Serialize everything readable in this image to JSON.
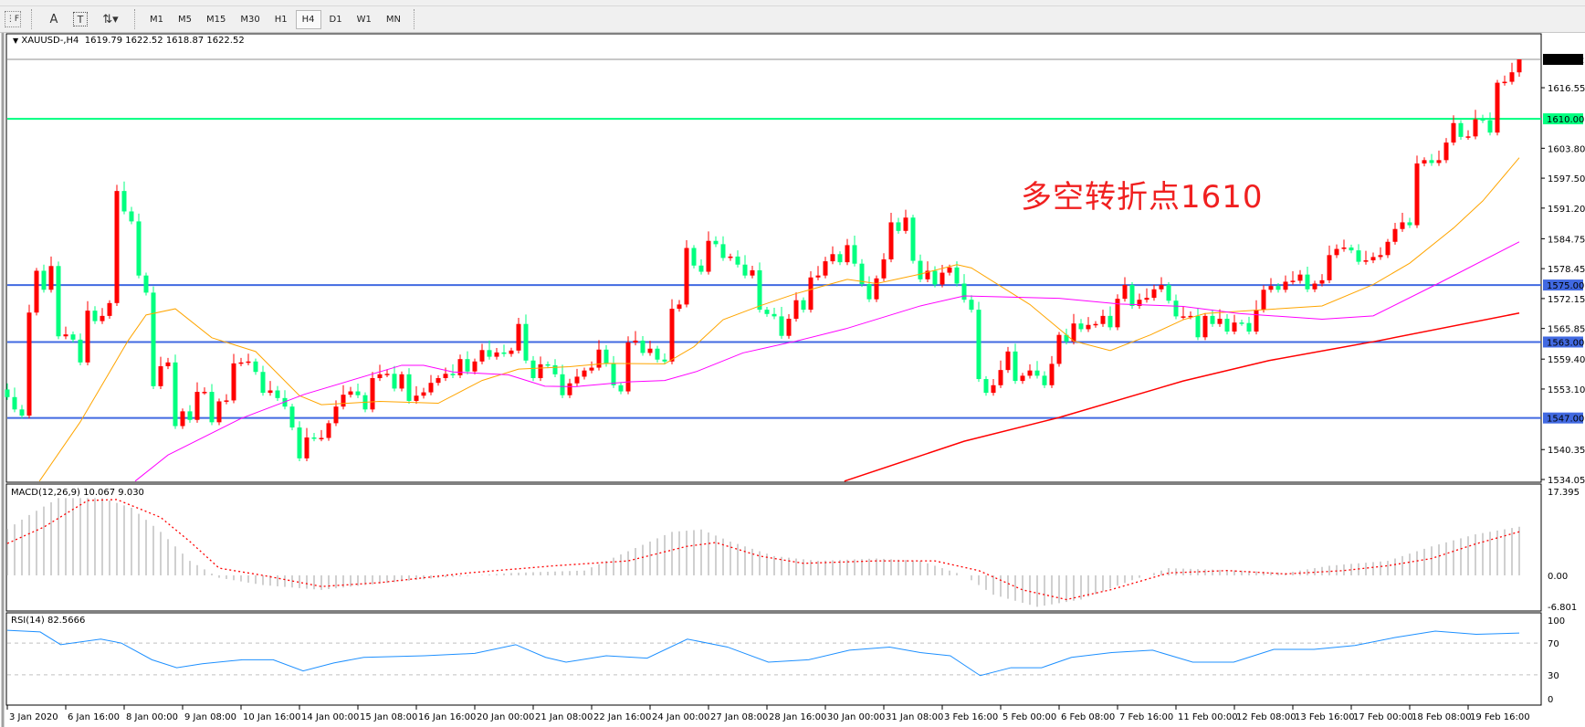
{
  "toolbar": {
    "tools": [
      {
        "name": "fibonacci-fan",
        "glyph": "⋮F"
      },
      {
        "name": "text",
        "glyph": "A"
      },
      {
        "name": "text-label",
        "glyph": "T"
      },
      {
        "name": "arrows",
        "glyph": "⇅▾"
      }
    ],
    "timeframes": [
      "M1",
      "M5",
      "M15",
      "M30",
      "H1",
      "H4",
      "D1",
      "W1",
      "MN"
    ],
    "active_timeframe": "H4"
  },
  "chart": {
    "symbol_info": "XAUUSD-,H4",
    "ohlc_info": "1619.79 1622.52 1618.87 1622.52",
    "annotation": "多空转折点1610",
    "colors": {
      "bull": "#ff0000",
      "bear": "#00ff7f",
      "ma_fast": "#ffa500",
      "ma_mid": "#ff00ff",
      "ma_slow": "#ff0000",
      "level_blue": "#4169e1",
      "level_green": "#00ff7f",
      "rsi": "#1e90ff",
      "macd_hist": "#c0c0c0",
      "macd_signal": "#ff0000"
    },
    "price_ticks": [
      "1616.55",
      "1603.80",
      "1597.50",
      "1591.20",
      "1584.75",
      "1578.45",
      "1572.15",
      "1565.85",
      "1559.40",
      "1553.10",
      "1540.35",
      "1534.05"
    ],
    "current_price": "1622.52",
    "levels": [
      {
        "price": 1610.0,
        "label": "1610.00",
        "color": "#00ff7f"
      },
      {
        "price": 1575.0,
        "label": "1575.00",
        "color": "#4169e1"
      },
      {
        "price": 1563.0,
        "label": "1563.00",
        "color": "#4169e1"
      },
      {
        "price": 1547.0,
        "label": "1547.00",
        "color": "#4169e1"
      }
    ],
    "x_labels": [
      "3 Jan 2020",
      "6 Jan 16:00",
      "8 Jan 00:00",
      "9 Jan 08:00",
      "10 Jan 16:00",
      "14 Jan 00:00",
      "15 Jan 08:00",
      "16 Jan 16:00",
      "20 Jan 00:00",
      "21 Jan 08:00",
      "22 Jan 16:00",
      "24 Jan 00:00",
      "27 Jan 08:00",
      "28 Jan 16:00",
      "30 Jan 00:00",
      "31 Jan 08:00",
      "3 Feb 16:00",
      "5 Feb 00:00",
      "6 Feb 08:00",
      "7 Feb 16:00",
      "11 Feb 00:00",
      "12 Feb 08:00",
      "13 Feb 16:00",
      "17 Feb 00:00",
      "18 Feb 08:00",
      "19 Feb 16:00"
    ]
  },
  "macd": {
    "label": "MACD(12,26,9) 10.067 9.030",
    "ticks": [
      "17.395",
      "0.00",
      "-6.801"
    ]
  },
  "rsi": {
    "label": "RSI(14) 82.5666",
    "ticks": [
      "100",
      "70",
      "30",
      "0"
    ]
  },
  "chart_data": {
    "type": "candlestick",
    "price_range": [
      1534.05,
      1622.52
    ],
    "first_open": 1553.0,
    "last_bar": {
      "open": 1619.79,
      "high": 1622.52,
      "low": 1618.87,
      "close": 1622.52
    },
    "closes": [
      1551.4,
      1548.8,
      1547.5,
      1569.2,
      1578.0,
      1574.0,
      1579.0,
      1564.2,
      1564.6,
      1563.5,
      1558.7,
      1569.6,
      1567.4,
      1568.5,
      1571.2,
      1594.8,
      1590.5,
      1588.4,
      1577.0,
      1573.4,
      1553.7,
      1557.9,
      1558.7,
      1545.3,
      1548.4,
      1546.6,
      1552.5,
      1552.5,
      1546.1,
      1550.5,
      1550.7,
      1558.5,
      1558.7,
      1558.9,
      1556.7,
      1552.3,
      1552.8,
      1551.2,
      1549.4,
      1545.0,
      1538.5,
      1542.9,
      1542.7,
      1542.8,
      1545.9,
      1549.4,
      1551.9,
      1552.6,
      1551.8,
      1548.8,
      1555.4,
      1556.2,
      1556.3,
      1553.2,
      1556.2,
      1550.6,
      1551.7,
      1552.4,
      1554.4,
      1555.4,
      1556.3,
      1556.0,
      1559.4,
      1556.8,
      1558.9,
      1561.3,
      1559.9,
      1560.8,
      1560.5,
      1561.2,
      1566.8,
      1559.1,
      1555.4,
      1558.3,
      1558.1,
      1556.2,
      1551.8,
      1554.3,
      1555.7,
      1557.0,
      1557.6,
      1561.4,
      1558.4,
      1553.9,
      1552.6,
      1562.9,
      1563.3,
      1560.7,
      1561.6,
      1559.3,
      1558.9,
      1570.0,
      1570.9,
      1582.8,
      1579.1,
      1577.8,
      1584.3,
      1583.6,
      1580.7,
      1581.0,
      1579.3,
      1577.0,
      1578.1,
      1569.8,
      1568.9,
      1568.4,
      1564.3,
      1567.9,
      1571.8,
      1569.8,
      1576.6,
      1577.0,
      1580.0,
      1581.5,
      1579.8,
      1583.4,
      1579.5,
      1575.2,
      1572.0,
      1576.4,
      1580.4,
      1588.2,
      1586.4,
      1589.2,
      1580.1,
      1576.2,
      1578.0,
      1575.1,
      1577.6,
      1578.7,
      1575.3,
      1571.9,
      1569.8,
      1555.2,
      1552.3,
      1553.9,
      1557.1,
      1561.0,
      1554.8,
      1555.9,
      1557.0,
      1555.9,
      1553.9,
      1558.4,
      1564.5,
      1563.1,
      1566.9,
      1565.7,
      1566.6,
      1566.8,
      1568.5,
      1566.1,
      1572.1,
      1575.0,
      1570.6,
      1571.9,
      1572.3,
      1574.1,
      1575.0,
      1571.7,
      1568.4,
      1568.4,
      1568.5,
      1564.0,
      1568.5,
      1566.8,
      1567.9,
      1565.2,
      1567.1,
      1567.0,
      1565.2,
      1569.8,
      1574.0,
      1574.8,
      1574.0,
      1575.7,
      1575.9,
      1577.2,
      1574.1,
      1575.3,
      1576.0,
      1581.3,
      1582.6,
      1582.9,
      1582.3,
      1579.9,
      1580.2,
      1580.9,
      1581.3,
      1584.1,
      1586.8,
      1588.2,
      1587.6,
      1600.6,
      1601.3,
      1600.7,
      1601.3,
      1605.0,
      1609.1,
      1606.2,
      1606.3,
      1609.9,
      1609.7,
      1607.1,
      1617.6,
      1617.8,
      1619.8,
      1622.52
    ],
    "ma_fast": [
      [
        5.4,
        1533.7
      ],
      [
        11,
        1546.2
      ],
      [
        17.5,
        1563.2
      ],
      [
        20,
        1568.7
      ],
      [
        24,
        1570.0
      ],
      [
        29,
        1563.9
      ],
      [
        35,
        1561.0
      ],
      [
        41,
        1551.7
      ],
      [
        44,
        1549.8
      ],
      [
        52,
        1550.5
      ],
      [
        60,
        1550.1
      ],
      [
        66,
        1554.9
      ],
      [
        71,
        1557.3
      ],
      [
        78,
        1557.8
      ],
      [
        83,
        1558.5
      ],
      [
        91,
        1558.4
      ],
      [
        95,
        1562.0
      ],
      [
        99,
        1567.7
      ],
      [
        104,
        1570.6
      ],
      [
        109,
        1573.2
      ],
      [
        116,
        1576.2
      ],
      [
        120,
        1575.3
      ],
      [
        126,
        1577.3
      ],
      [
        131,
        1579.3
      ],
      [
        133,
        1578.6
      ],
      [
        141,
        1570.9
      ],
      [
        147,
        1563.2
      ],
      [
        152,
        1561.2
      ],
      [
        157.5,
        1564.5
      ],
      [
        162,
        1567.7
      ],
      [
        165,
        1569.0
      ],
      [
        172,
        1569.7
      ],
      [
        181,
        1570.6
      ],
      [
        188,
        1575.1
      ],
      [
        193,
        1579.6
      ],
      [
        199,
        1587.0
      ],
      [
        203,
        1592.7
      ],
      [
        208,
        1601.8
      ]
    ],
    "ma_mid": [
      [
        18.5,
        1533.7
      ],
      [
        23,
        1539.2
      ],
      [
        33,
        1546.9
      ],
      [
        41.7,
        1552.0
      ],
      [
        55,
        1558.1
      ],
      [
        58,
        1558.1
      ],
      [
        62,
        1556.7
      ],
      [
        69.6,
        1556.1
      ],
      [
        74.6,
        1553.7
      ],
      [
        78.8,
        1553.6
      ],
      [
        86,
        1554.6
      ],
      [
        91,
        1554.9
      ],
      [
        95.4,
        1556.8
      ],
      [
        101.7,
        1560.7
      ],
      [
        109,
        1563.2
      ],
      [
        115.8,
        1565.8
      ],
      [
        126,
        1570.6
      ],
      [
        132,
        1572.7
      ],
      [
        145,
        1572.2
      ],
      [
        153.3,
        1571.0
      ],
      [
        162,
        1570.5
      ],
      [
        169.6,
        1569.0
      ],
      [
        181,
        1567.8
      ],
      [
        188,
        1568.5
      ],
      [
        197,
        1575.4
      ],
      [
        208,
        1584.1
      ]
    ],
    "ma_slow": [
      [
        115.6,
        1533.7
      ],
      [
        132,
        1542.1
      ],
      [
        145,
        1547.1
      ],
      [
        162,
        1554.8
      ],
      [
        173.75,
        1559.1
      ],
      [
        188.5,
        1563.2
      ],
      [
        208,
        1569.1
      ]
    ],
    "macd_main": [
      [
        1,
        9.6
      ],
      [
        4,
        12.5
      ],
      [
        8,
        16
      ],
      [
        14,
        16
      ],
      [
        18,
        14
      ],
      [
        22,
        9
      ],
      [
        26,
        3
      ],
      [
        30,
        -0.5
      ],
      [
        36,
        -2
      ],
      [
        44,
        -3
      ],
      [
        50,
        -2
      ],
      [
        60,
        -0.5
      ],
      [
        70,
        0.5
      ],
      [
        80,
        1
      ],
      [
        86,
        5
      ],
      [
        92,
        9
      ],
      [
        96,
        9.5
      ],
      [
        100,
        7
      ],
      [
        106,
        4
      ],
      [
        112,
        3
      ],
      [
        120,
        3.5
      ],
      [
        126,
        3
      ],
      [
        132,
        0
      ],
      [
        136,
        -4
      ],
      [
        142,
        -6.5
      ],
      [
        148,
        -5
      ],
      [
        155,
        -1
      ],
      [
        160,
        1.5
      ],
      [
        170,
        1
      ],
      [
        176,
        0.5
      ],
      [
        182,
        2
      ],
      [
        190,
        3
      ],
      [
        196,
        6
      ],
      [
        202,
        8.5
      ],
      [
        208,
        10.067
      ]
    ],
    "macd_signal": [
      [
        1,
        6.6
      ],
      [
        6,
        10
      ],
      [
        12,
        15.5
      ],
      [
        16,
        15.7
      ],
      [
        22,
        12
      ],
      [
        26,
        7
      ],
      [
        30,
        1.5
      ],
      [
        36,
        0
      ],
      [
        44,
        -2.3
      ],
      [
        52,
        -1.5
      ],
      [
        64,
        0.5
      ],
      [
        76,
        2
      ],
      [
        86,
        3
      ],
      [
        94,
        6
      ],
      [
        98,
        6.8
      ],
      [
        104,
        4
      ],
      [
        110,
        2.5
      ],
      [
        120,
        3
      ],
      [
        128,
        3
      ],
      [
        134,
        1
      ],
      [
        140,
        -3
      ],
      [
        146,
        -5
      ],
      [
        152,
        -3
      ],
      [
        160,
        0.5
      ],
      [
        168,
        1
      ],
      [
        176,
        0.3
      ],
      [
        184,
        1
      ],
      [
        190,
        2
      ],
      [
        196,
        3.5
      ],
      [
        202,
        6.5
      ],
      [
        208,
        9.03
      ]
    ],
    "macd_range": [
      -6.801,
      17.395
    ],
    "rsi_values": [
      [
        1,
        86
      ],
      [
        5.5,
        84
      ],
      [
        8.3,
        68
      ],
      [
        13.8,
        75
      ],
      [
        16.6,
        70
      ],
      [
        20.8,
        49
      ],
      [
        24.2,
        39
      ],
      [
        27.7,
        44
      ],
      [
        33.2,
        49
      ],
      [
        37.4,
        49
      ],
      [
        41.5,
        35
      ],
      [
        45.7,
        45
      ],
      [
        49.8,
        52
      ],
      [
        58.1,
        54
      ],
      [
        65,
        57
      ],
      [
        70.6,
        68
      ],
      [
        74.7,
        52
      ],
      [
        77.5,
        46
      ],
      [
        83,
        54
      ],
      [
        88.6,
        51
      ],
      [
        94.1,
        75
      ],
      [
        99.6,
        65
      ],
      [
        105.2,
        46
      ],
      [
        110.7,
        49
      ],
      [
        116.3,
        61
      ],
      [
        121.8,
        65
      ],
      [
        126,
        58
      ],
      [
        130.1,
        54
      ],
      [
        134.2,
        29
      ],
      [
        138.4,
        39
      ],
      [
        142.6,
        39
      ],
      [
        146.7,
        52
      ],
      [
        152.2,
        58
      ],
      [
        157.8,
        61
      ],
      [
        163.3,
        46
      ],
      [
        168.9,
        46
      ],
      [
        174.4,
        62
      ],
      [
        179.9,
        62
      ],
      [
        185.5,
        67
      ],
      [
        191,
        77
      ],
      [
        196.5,
        85
      ],
      [
        202.1,
        81
      ],
      [
        208,
        82.5666
      ]
    ],
    "rsi_range": [
      0,
      100
    ],
    "rsi_levels": [
      70,
      30
    ]
  }
}
